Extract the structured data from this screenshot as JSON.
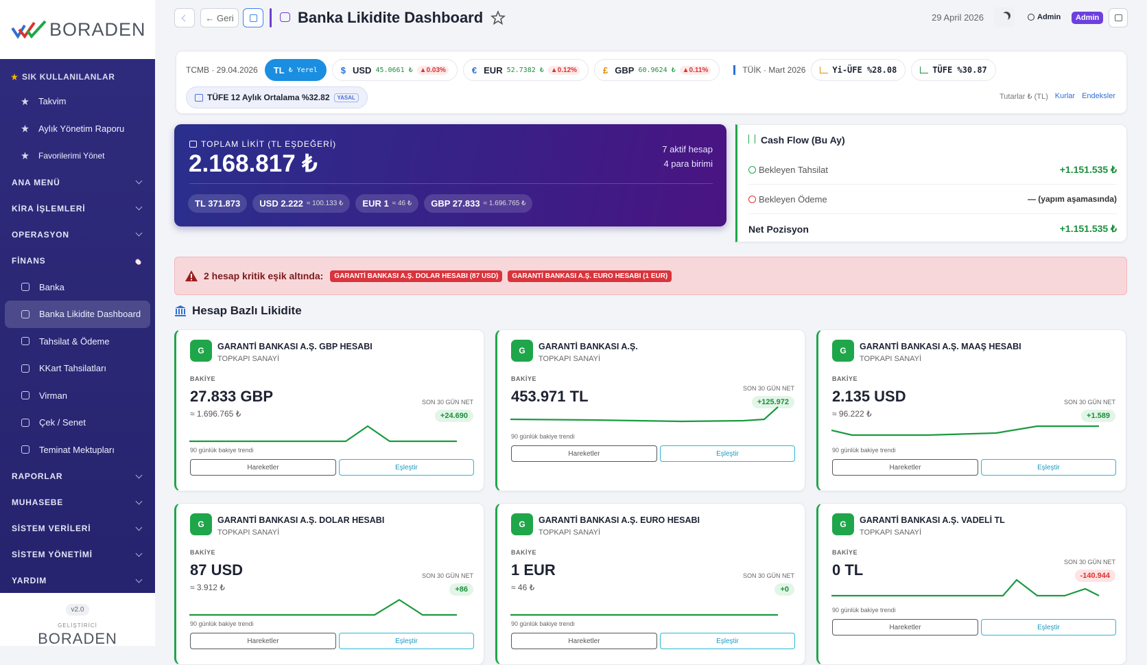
{
  "sidebar": {
    "logo": "BORADEN",
    "favorites_title": "SIK KULLANILANLAR",
    "favorites": [
      "Takvim",
      "Aylık Yönetim Raporu",
      "Favorilerimi Yönet"
    ],
    "sections": [
      {
        "title": "ANA MENÜ"
      },
      {
        "title": "KİRA İŞLEMLERİ"
      },
      {
        "title": "OPERASYON"
      },
      {
        "title": "FİNANS",
        "items": [
          {
            "label": "Banka"
          },
          {
            "label": "Banka Likidite Dashboard",
            "active": true
          },
          {
            "label": "Tahsilat & Ödeme"
          },
          {
            "label": "KKart Tahsilatları"
          },
          {
            "label": "Virman"
          },
          {
            "label": "Çek / Senet"
          },
          {
            "label": "Teminat Mektupları"
          }
        ]
      },
      {
        "title": "RAPORLAR"
      },
      {
        "title": "MUHASEBE"
      },
      {
        "title": "SİSTEM VERİLERİ"
      },
      {
        "title": "SİSTEM YÖNETİMİ"
      },
      {
        "title": "YARDIM"
      }
    ],
    "version": "v2.0",
    "developer": "GELİŞTİRİCİ",
    "footer_logo": "BORADEN"
  },
  "header": {
    "back": "← Geri",
    "title": "Banka Likidite Dashboard",
    "date": "29 April 2026",
    "user": "Admin",
    "role": "Admin"
  },
  "rates": {
    "source": "TCMB · 29.04.2026",
    "base": {
      "code": "TL",
      "note": "₺ Yerel"
    },
    "currencies": [
      {
        "symbol": "$",
        "code": "USD",
        "rate": "45.0661 ₺",
        "change": "▲0.03%"
      },
      {
        "symbol": "€",
        "code": "EUR",
        "rate": "52.7382 ₺",
        "change": "▲0.12%"
      },
      {
        "symbol": "£",
        "code": "GBP",
        "rate": "60.9624 ₺",
        "change": "▲0.11%"
      }
    ],
    "tuik": "TÜİK · Mart 2026",
    "yiufe": "Yi-ÜFE %28.08",
    "tufe": "TÜFE %30.87",
    "tufe12": "TÜFE 12 Aylık Ortalama %32.82",
    "tufe12_badge": "YASAL",
    "amounts": "Tutarlar ₺ (TL)",
    "link_rates": "Kurlar",
    "link_indexes": "Endeksler"
  },
  "total": {
    "label": "TOPLAM LİKİT (TL EŞDEĞERİ)",
    "amount": "2.168.817 ₺",
    "accounts": "7 aktif hesap",
    "currencies": "4 para birimi",
    "chips": [
      {
        "main": "TL 371.873"
      },
      {
        "main": "USD 2.222",
        "sub": "≈ 100.133 ₺"
      },
      {
        "main": "EUR 1",
        "sub": "≈ 46 ₺"
      },
      {
        "main": "GBP 27.833",
        "sub": "≈ 1.696.765 ₺"
      }
    ]
  },
  "cashflow": {
    "title": "Cash Flow (Bu Ay)",
    "rows": [
      {
        "label": "Bekleyen Tahsilat",
        "value": "+1.151.535 ₺"
      },
      {
        "label": "Bekleyen Ödeme",
        "value": "— (yapım aşamasında)"
      },
      {
        "label": "Net Pozisyon",
        "value": "+1.151.535 ₺"
      }
    ]
  },
  "alert": {
    "text": "2 hesap kritik eşik altında:",
    "tags": [
      "GARANTİ BANKASI A.Ş. DOLAR HESABI (87 USD)",
      "GARANTİ BANKASI A.Ş. EURO HESABI (1 EUR)"
    ]
  },
  "section_title": "Hesap Bazlı Likidite",
  "accounts": [
    {
      "avatar": "G",
      "name": "GARANTİ BANKASI A.Ş. GBP HESABI",
      "branch": "TOPKAPI SANAYİ",
      "balance_label": "BAKİYE",
      "balance": "27.833 GBP",
      "tl_equiv": "≈ 1.696.765 ₺",
      "net_label": "SON 30 GÜN NET",
      "net": "+24.690",
      "trend_label": "90 günlük bakiye trendi",
      "btn_moves": "Hareketler",
      "btn_match": "Eşleştir"
    },
    {
      "avatar": "G",
      "name": "GARANTİ BANKASI A.Ş.",
      "branch": "TOPKAPI SANAYİ",
      "balance_label": "BAKİYE",
      "balance": "453.971 TL",
      "net_label": "SON 30 GÜN NET",
      "net": "+125.972",
      "trend_label": "90 günlük bakiye trendi",
      "btn_moves": "Hareketler",
      "btn_match": "Eşleştir"
    },
    {
      "avatar": "G",
      "name": "GARANTİ BANKASI A.Ş. MAAŞ HESABI",
      "branch": "TOPKAPI SANAYİ",
      "balance_label": "BAKİYE",
      "balance": "2.135 USD",
      "tl_equiv": "≈ 96.222 ₺",
      "net_label": "SON 30 GÜN NET",
      "net": "+1.589",
      "trend_label": "90 günlük bakiye trendi",
      "btn_moves": "Hareketler",
      "btn_match": "Eşleştir"
    },
    {
      "avatar": "G",
      "name": "GARANTİ BANKASI A.Ş. DOLAR HESABI",
      "branch": "TOPKAPI SANAYİ",
      "balance_label": "BAKİYE",
      "balance": "87 USD",
      "tl_equiv": "≈ 3.912 ₺",
      "net_label": "SON 30 GÜN NET",
      "net": "+86",
      "trend_label": "90 günlük bakiye trendi",
      "btn_moves": "Hareketler",
      "btn_match": "Eşleştir"
    },
    {
      "avatar": "G",
      "name": "GARANTİ BANKASI A.Ş. EURO HESABI",
      "branch": "TOPKAPI SANAYİ",
      "balance_label": "BAKİYE",
      "balance": "1 EUR",
      "tl_equiv": "≈ 46 ₺",
      "net_label": "SON 30 GÜN NET",
      "net": "+0",
      "trend_label": "90 günlük bakiye trendi",
      "btn_moves": "Hareketler",
      "btn_match": "Eşleştir"
    },
    {
      "avatar": "G",
      "name": "GARANTİ BANKASI A.Ş. VADELİ TL",
      "branch": "TOPKAPI SANAYİ",
      "balance_label": "BAKİYE",
      "balance": "0 TL",
      "net_label": "SON 30 GÜN NET",
      "net": "-140.944",
      "trend_label": "90 günlük bakiye trendi",
      "btn_moves": "Hareketler",
      "btn_match": "Eşleştir"
    }
  ]
}
